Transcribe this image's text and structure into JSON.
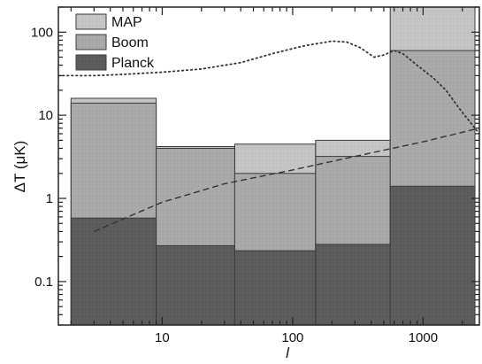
{
  "chart_data": {
    "type": "bar",
    "xlabel": "l",
    "ylabel": "ΔT (μK)",
    "x_scale": "log",
    "y_scale": "log",
    "xlim": [
      1.6,
      2700
    ],
    "ylim": [
      0.03,
      200
    ],
    "x_ticks": [
      {
        "value": 10,
        "label": "10"
      },
      {
        "value": 100,
        "label": "100"
      },
      {
        "value": 1000,
        "label": "1000"
      }
    ],
    "y_ticks": [
      {
        "value": 0.1,
        "label": "0.1"
      },
      {
        "value": 1,
        "label": "1"
      },
      {
        "value": 10,
        "label": "10"
      },
      {
        "value": 100,
        "label": "100"
      }
    ],
    "legend_position": "top-left",
    "series": [
      {
        "name": "MAP",
        "color": "#c4c4c4",
        "bins": [
          {
            "l_min": 2,
            "l_max": 9,
            "value": 16
          },
          {
            "l_min": 9,
            "l_max": 36,
            "value": 4.2
          },
          {
            "l_min": 36,
            "l_max": 150,
            "value": 4.5
          },
          {
            "l_min": 150,
            "l_max": 560,
            "value": 5.0
          },
          {
            "l_min": 560,
            "l_max": 2500,
            "value": 200
          }
        ]
      },
      {
        "name": "Boom",
        "color": "#a9a9a9",
        "bins": [
          {
            "l_min": 2,
            "l_max": 9,
            "value": 14
          },
          {
            "l_min": 9,
            "l_max": 36,
            "value": 4.0
          },
          {
            "l_min": 36,
            "l_max": 150,
            "value": 2.0
          },
          {
            "l_min": 150,
            "l_max": 560,
            "value": 3.2
          },
          {
            "l_min": 560,
            "l_max": 2500,
            "value": 60
          }
        ]
      },
      {
        "name": "Planck",
        "color": "#5b5b5b",
        "bins": [
          {
            "l_min": 2,
            "l_max": 9,
            "value": 0.58
          },
          {
            "l_min": 9,
            "l_max": 36,
            "value": 0.27
          },
          {
            "l_min": 36,
            "l_max": 150,
            "value": 0.235
          },
          {
            "l_min": 150,
            "l_max": 560,
            "value": 0.28
          },
          {
            "l_min": 560,
            "l_max": 2500,
            "value": 1.4
          }
        ]
      }
    ],
    "curves": [
      {
        "style": "dotted",
        "points": [
          [
            1.6,
            30
          ],
          [
            3,
            30
          ],
          [
            5,
            31
          ],
          [
            10,
            33
          ],
          [
            20,
            36
          ],
          [
            40,
            43
          ],
          [
            70,
            55
          ],
          [
            120,
            68
          ],
          [
            200,
            78
          ],
          [
            260,
            76
          ],
          [
            330,
            65
          ],
          [
            420,
            50
          ],
          [
            500,
            53
          ],
          [
            600,
            60
          ],
          [
            700,
            55
          ],
          [
            900,
            40
          ],
          [
            1200,
            28
          ],
          [
            1500,
            20
          ],
          [
            1900,
            12
          ],
          [
            2700,
            6
          ]
        ]
      },
      {
        "style": "dashed",
        "points": [
          [
            3,
            0.4
          ],
          [
            10,
            0.9
          ],
          [
            30,
            1.5
          ],
          [
            100,
            2.2
          ],
          [
            300,
            3.2
          ],
          [
            1000,
            4.8
          ],
          [
            2700,
            7
          ]
        ]
      }
    ]
  }
}
